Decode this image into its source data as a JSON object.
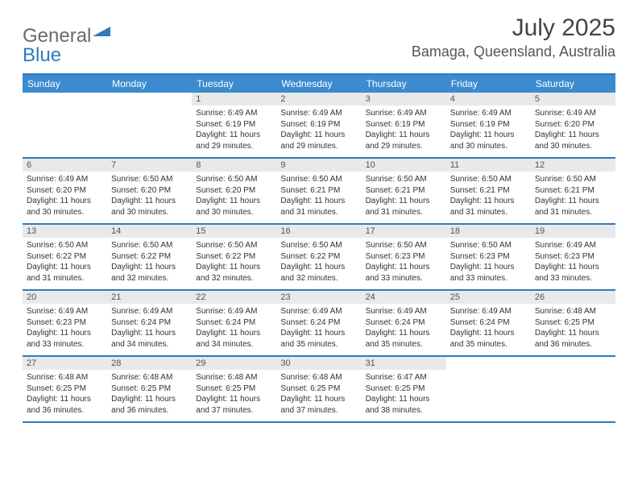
{
  "logo": {
    "text1": "General",
    "text2": "Blue"
  },
  "title": "July 2025",
  "location": "Bamaga, Queensland, Australia",
  "colors": {
    "header_bar": "#3b8bce",
    "border": "#2f7ac0",
    "daynum_bg": "#e8e9ea",
    "text": "#333333",
    "title_text": "#444444"
  },
  "weekdays": [
    "Sunday",
    "Monday",
    "Tuesday",
    "Wednesday",
    "Thursday",
    "Friday",
    "Saturday"
  ],
  "weeks": [
    [
      null,
      null,
      {
        "n": "1",
        "sunrise": "6:49 AM",
        "sunset": "6:19 PM",
        "daylight": "11 hours and 29 minutes."
      },
      {
        "n": "2",
        "sunrise": "6:49 AM",
        "sunset": "6:19 PM",
        "daylight": "11 hours and 29 minutes."
      },
      {
        "n": "3",
        "sunrise": "6:49 AM",
        "sunset": "6:19 PM",
        "daylight": "11 hours and 29 minutes."
      },
      {
        "n": "4",
        "sunrise": "6:49 AM",
        "sunset": "6:19 PM",
        "daylight": "11 hours and 30 minutes."
      },
      {
        "n": "5",
        "sunrise": "6:49 AM",
        "sunset": "6:20 PM",
        "daylight": "11 hours and 30 minutes."
      }
    ],
    [
      {
        "n": "6",
        "sunrise": "6:49 AM",
        "sunset": "6:20 PM",
        "daylight": "11 hours and 30 minutes."
      },
      {
        "n": "7",
        "sunrise": "6:50 AM",
        "sunset": "6:20 PM",
        "daylight": "11 hours and 30 minutes."
      },
      {
        "n": "8",
        "sunrise": "6:50 AM",
        "sunset": "6:20 PM",
        "daylight": "11 hours and 30 minutes."
      },
      {
        "n": "9",
        "sunrise": "6:50 AM",
        "sunset": "6:21 PM",
        "daylight": "11 hours and 31 minutes."
      },
      {
        "n": "10",
        "sunrise": "6:50 AM",
        "sunset": "6:21 PM",
        "daylight": "11 hours and 31 minutes."
      },
      {
        "n": "11",
        "sunrise": "6:50 AM",
        "sunset": "6:21 PM",
        "daylight": "11 hours and 31 minutes."
      },
      {
        "n": "12",
        "sunrise": "6:50 AM",
        "sunset": "6:21 PM",
        "daylight": "11 hours and 31 minutes."
      }
    ],
    [
      {
        "n": "13",
        "sunrise": "6:50 AM",
        "sunset": "6:22 PM",
        "daylight": "11 hours and 31 minutes."
      },
      {
        "n": "14",
        "sunrise": "6:50 AM",
        "sunset": "6:22 PM",
        "daylight": "11 hours and 32 minutes."
      },
      {
        "n": "15",
        "sunrise": "6:50 AM",
        "sunset": "6:22 PM",
        "daylight": "11 hours and 32 minutes."
      },
      {
        "n": "16",
        "sunrise": "6:50 AM",
        "sunset": "6:22 PM",
        "daylight": "11 hours and 32 minutes."
      },
      {
        "n": "17",
        "sunrise": "6:50 AM",
        "sunset": "6:23 PM",
        "daylight": "11 hours and 33 minutes."
      },
      {
        "n": "18",
        "sunrise": "6:50 AM",
        "sunset": "6:23 PM",
        "daylight": "11 hours and 33 minutes."
      },
      {
        "n": "19",
        "sunrise": "6:49 AM",
        "sunset": "6:23 PM",
        "daylight": "11 hours and 33 minutes."
      }
    ],
    [
      {
        "n": "20",
        "sunrise": "6:49 AM",
        "sunset": "6:23 PM",
        "daylight": "11 hours and 33 minutes."
      },
      {
        "n": "21",
        "sunrise": "6:49 AM",
        "sunset": "6:24 PM",
        "daylight": "11 hours and 34 minutes."
      },
      {
        "n": "22",
        "sunrise": "6:49 AM",
        "sunset": "6:24 PM",
        "daylight": "11 hours and 34 minutes."
      },
      {
        "n": "23",
        "sunrise": "6:49 AM",
        "sunset": "6:24 PM",
        "daylight": "11 hours and 35 minutes."
      },
      {
        "n": "24",
        "sunrise": "6:49 AM",
        "sunset": "6:24 PM",
        "daylight": "11 hours and 35 minutes."
      },
      {
        "n": "25",
        "sunrise": "6:49 AM",
        "sunset": "6:24 PM",
        "daylight": "11 hours and 35 minutes."
      },
      {
        "n": "26",
        "sunrise": "6:48 AM",
        "sunset": "6:25 PM",
        "daylight": "11 hours and 36 minutes."
      }
    ],
    [
      {
        "n": "27",
        "sunrise": "6:48 AM",
        "sunset": "6:25 PM",
        "daylight": "11 hours and 36 minutes."
      },
      {
        "n": "28",
        "sunrise": "6:48 AM",
        "sunset": "6:25 PM",
        "daylight": "11 hours and 36 minutes."
      },
      {
        "n": "29",
        "sunrise": "6:48 AM",
        "sunset": "6:25 PM",
        "daylight": "11 hours and 37 minutes."
      },
      {
        "n": "30",
        "sunrise": "6:48 AM",
        "sunset": "6:25 PM",
        "daylight": "11 hours and 37 minutes."
      },
      {
        "n": "31",
        "sunrise": "6:47 AM",
        "sunset": "6:25 PM",
        "daylight": "11 hours and 38 minutes."
      },
      null,
      null
    ]
  ],
  "labels": {
    "sunrise": "Sunrise:",
    "sunset": "Sunset:",
    "daylight": "Daylight:"
  }
}
